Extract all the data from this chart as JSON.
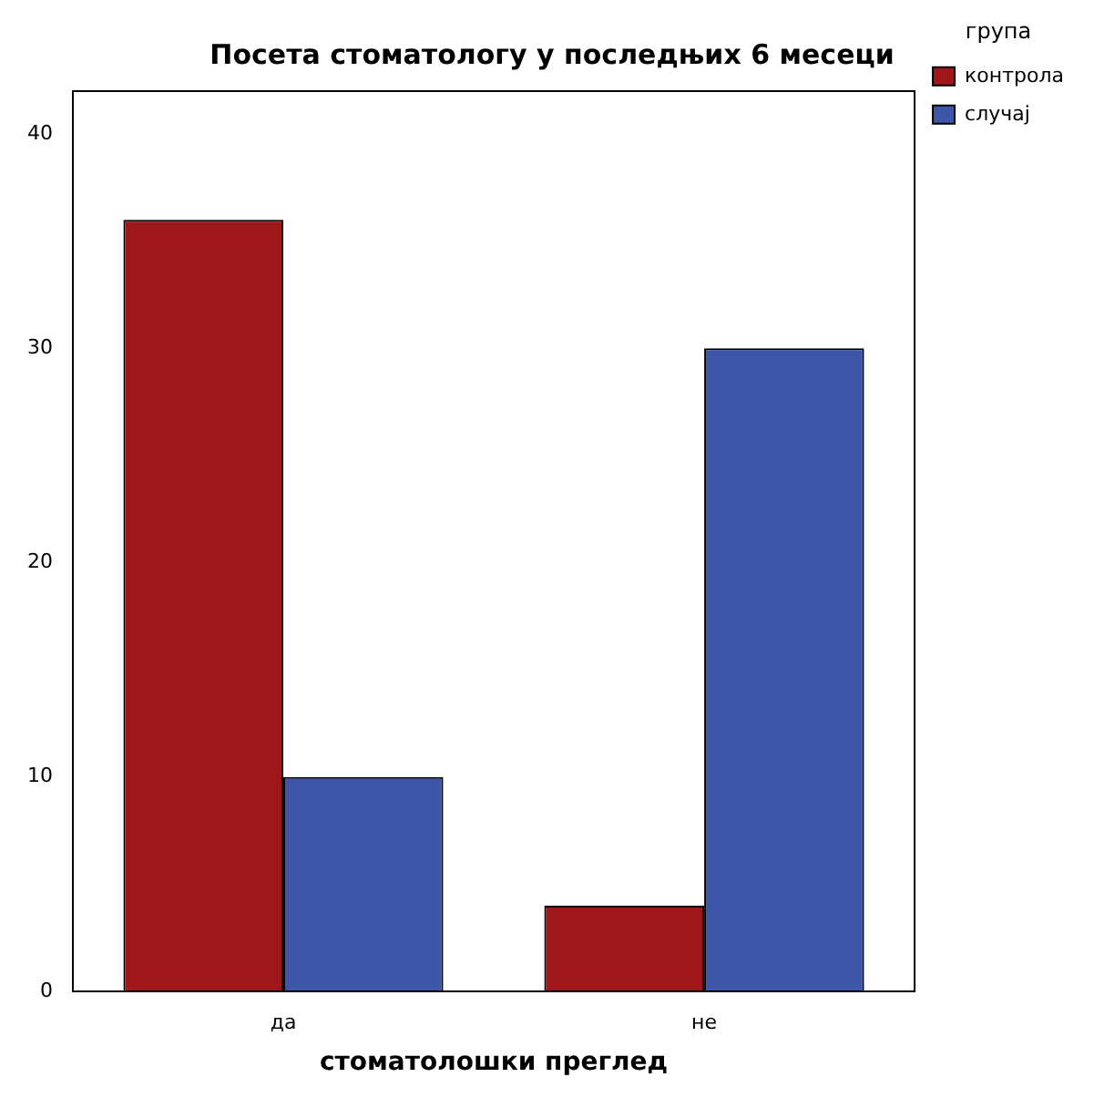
{
  "chart_data": {
    "type": "bar",
    "title": "Посета стоматологу у последњих 6 месеци",
    "xlabel": "стоматолошки преглед",
    "legend_title": "група",
    "categories": [
      "да",
      "не"
    ],
    "series": [
      {
        "name": "контрола",
        "color": "#a0171b",
        "values": [
          36,
          4
        ]
      },
      {
        "name": "случај",
        "color": "#3d56a8",
        "values": [
          10,
          30
        ]
      }
    ],
    "ylim": [
      0,
      42
    ],
    "yticks": [
      0,
      10,
      20,
      30,
      40
    ],
    "grid": false,
    "legend": "top right"
  }
}
